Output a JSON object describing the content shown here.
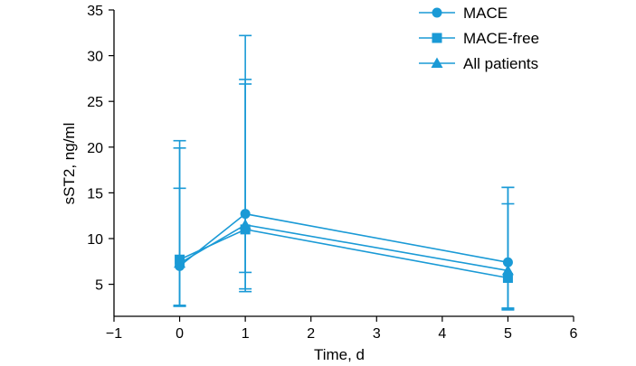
{
  "chart_data": {
    "type": "line",
    "title": "",
    "xlabel": "Time, d",
    "ylabel": "sST2, ng/ml",
    "xlim": [
      -1,
      6
    ],
    "ylim": [
      1.5,
      35
    ],
    "x_ticks": [
      -1,
      0,
      1,
      2,
      3,
      4,
      5,
      6
    ],
    "x_tick_labels": [
      "−1",
      "0",
      "1",
      "2",
      "3",
      "4",
      "5",
      "6"
    ],
    "y_ticks": [
      5,
      10,
      15,
      20,
      25,
      30,
      35
    ],
    "y_tick_labels": [
      "5",
      "10",
      "15",
      "20",
      "25",
      "30",
      "35"
    ],
    "x": [
      0,
      1,
      5
    ],
    "color": "#1a9ad6",
    "grid": false,
    "legend_position": "top-right",
    "series": [
      {
        "name": "MACE",
        "marker": "circle",
        "values": [
          7.0,
          12.7,
          7.4
        ],
        "err_low": [
          2.7,
          4.2,
          2.2
        ],
        "err_high": [
          15.5,
          32.2,
          15.6
        ]
      },
      {
        "name": "MACE-free",
        "marker": "square",
        "values": [
          7.7,
          11.0,
          5.7
        ],
        "err_low": [
          2.6,
          4.5,
          2.4
        ],
        "err_high": [
          20.7,
          26.9,
          13.8
        ]
      },
      {
        "name": "All patients",
        "marker": "triangle",
        "values": [
          7.3,
          11.5,
          6.5
        ],
        "err_low": [
          2.6,
          6.3,
          2.3
        ],
        "err_high": [
          19.9,
          27.4,
          15.6
        ]
      }
    ]
  }
}
